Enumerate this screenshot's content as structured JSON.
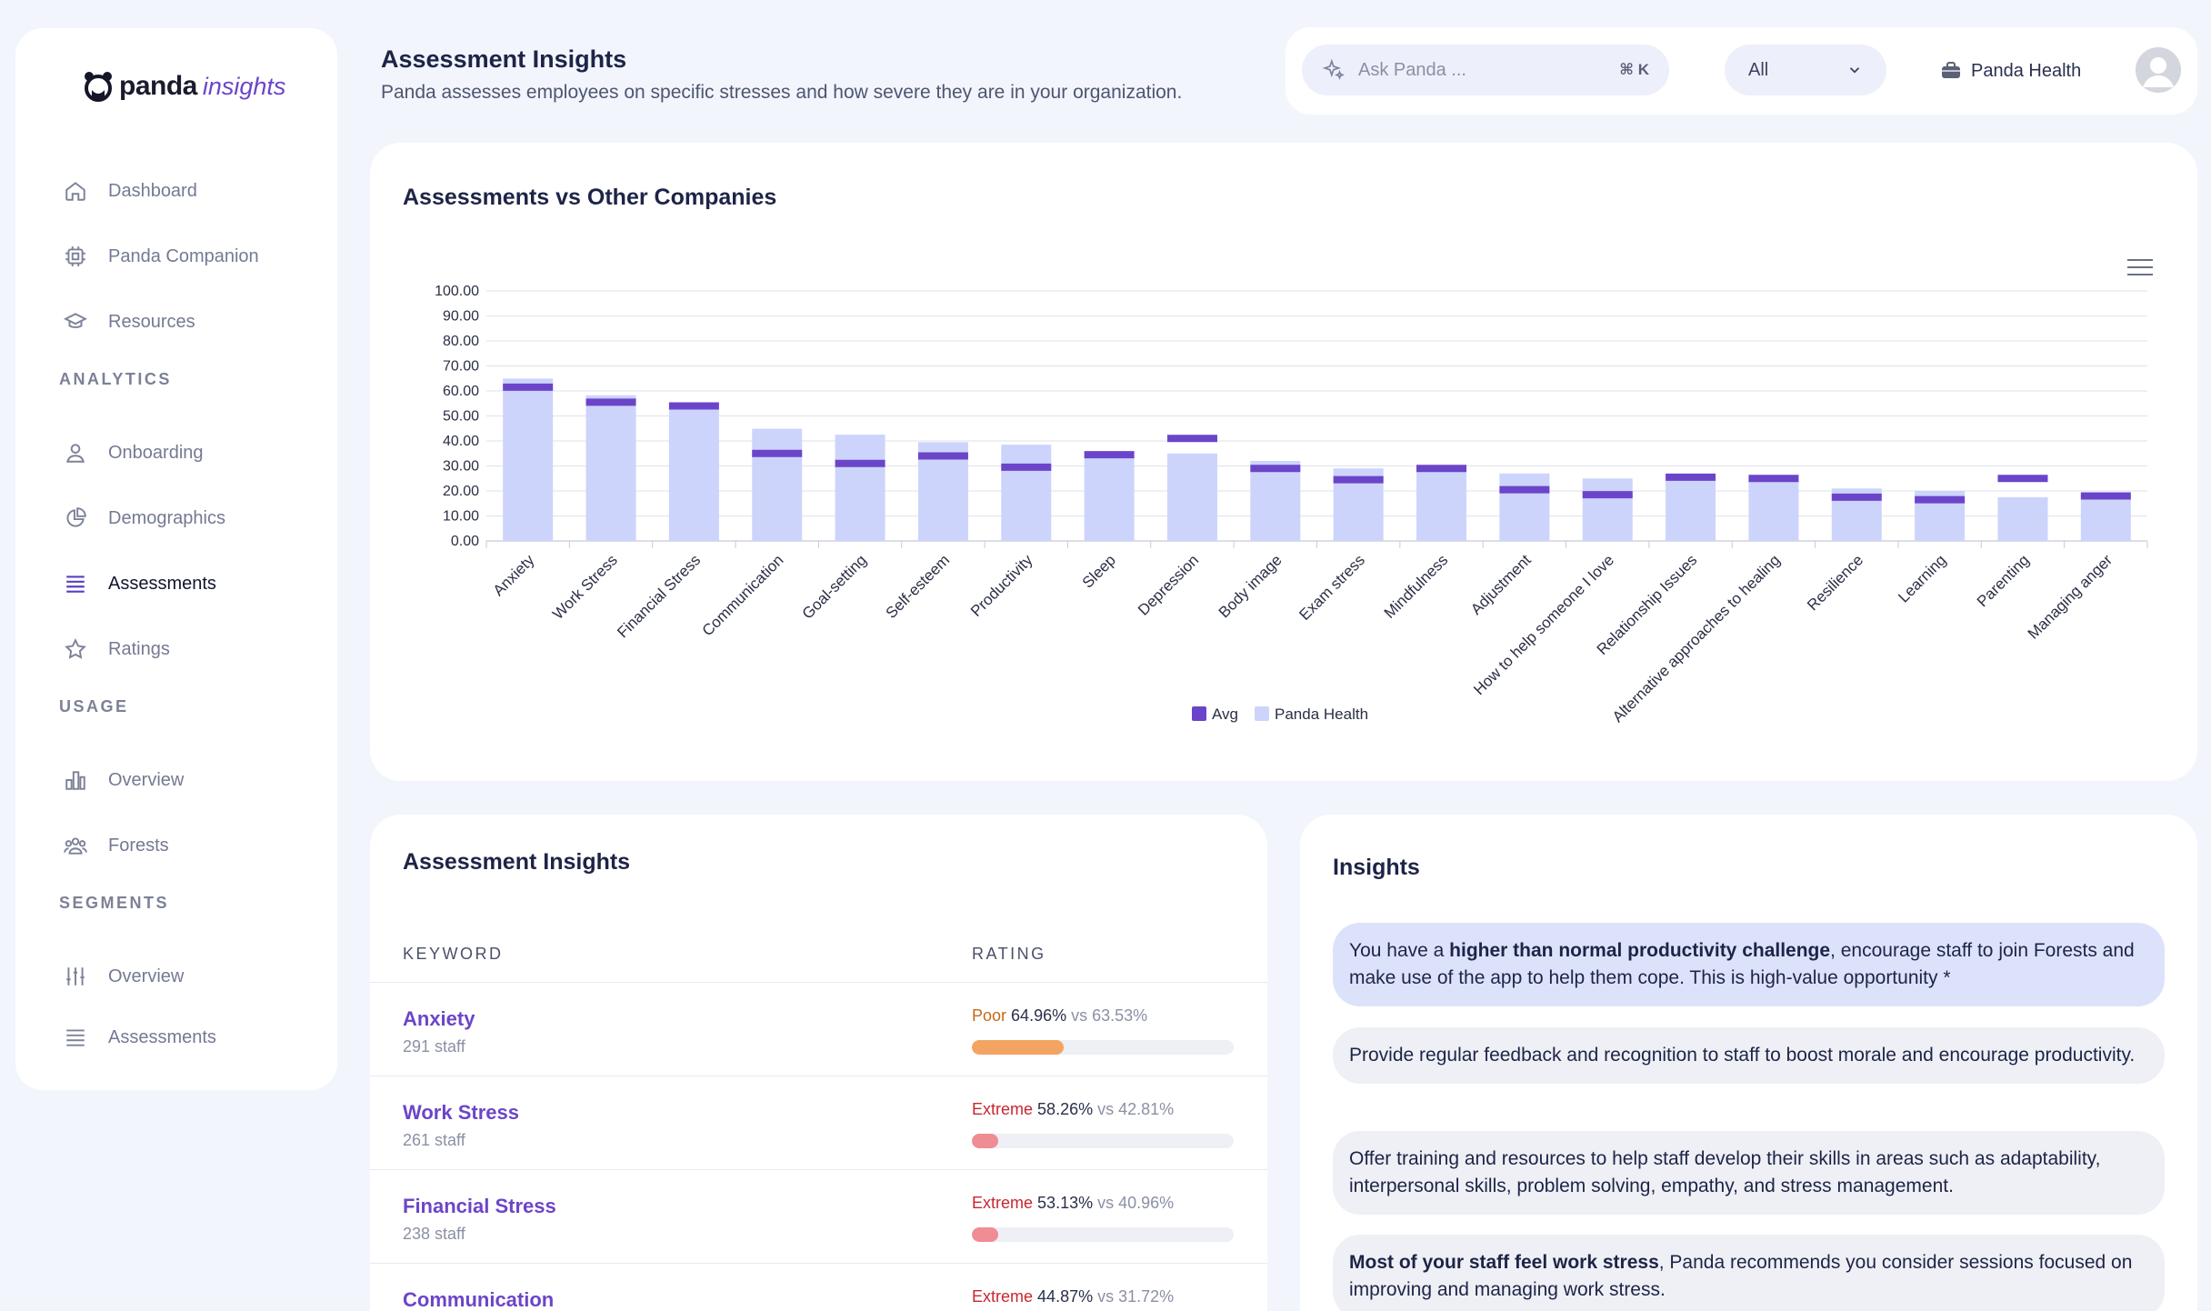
{
  "brand": {
    "name": "panda",
    "suffix": "insights"
  },
  "nav": {
    "main": [
      {
        "label": "Dashboard",
        "icon": "home-icon"
      },
      {
        "label": "Panda Companion",
        "icon": "chip-icon"
      },
      {
        "label": "Resources",
        "icon": "graduation-cap-icon"
      }
    ],
    "analytics_label": "ANALYTICS",
    "analytics": [
      {
        "label": "Onboarding",
        "icon": "user-icon"
      },
      {
        "label": "Demographics",
        "icon": "pie-chart-icon"
      },
      {
        "label": "Assessments",
        "icon": "stack-icon",
        "active": true
      },
      {
        "label": "Ratings",
        "icon": "star-icon"
      }
    ],
    "usage_label": "USAGE",
    "usage": [
      {
        "label": "Overview",
        "icon": "bar-chart-icon"
      },
      {
        "label": "Forests",
        "icon": "users-icon"
      }
    ],
    "segments_label": "SEGMENTS",
    "segments": [
      {
        "label": "Overview",
        "icon": "sliders-icon"
      },
      {
        "label": "Assessments",
        "icon": "stack-icon"
      }
    ]
  },
  "header": {
    "title": "Assessment Insights",
    "subtitle": "Panda assesses employees on specific stresses and how severe they are in your organization."
  },
  "topbar": {
    "search_placeholder": "Ask Panda ...",
    "search_shortcut": "⌘ K",
    "filter_value": "All",
    "org_name": "Panda Health"
  },
  "chart_title": "Assessments vs Other Companies",
  "chart_data": {
    "type": "bar",
    "title": "Assessments vs Other Companies",
    "ylim": [
      0,
      100
    ],
    "yticks": [
      "0.00",
      "10.00",
      "20.00",
      "30.00",
      "40.00",
      "50.00",
      "60.00",
      "70.00",
      "80.00",
      "90.00",
      "100.00"
    ],
    "categories": [
      "Anxiety",
      "Work Stress",
      "Financial Stress",
      "Communication",
      "Goal-setting",
      "Self-esteem",
      "Productivity",
      "Sleep",
      "Depression",
      "Body image",
      "Exam stress",
      "Mindfulness",
      "Adjustment",
      "How to help someone I love",
      "Relationship Issues",
      "Alternative approaches to healing",
      "Resilience",
      "Learning",
      "Parenting",
      "Managing anger"
    ],
    "series": [
      {
        "name": "Panda Health",
        "color": "#cdd4fb",
        "values": [
          64.96,
          58.26,
          53.13,
          44.87,
          42.5,
          39.5,
          38.5,
          33.5,
          35,
          32,
          29,
          28.5,
          27,
          25,
          26,
          25,
          21,
          20,
          17.5,
          18.5
        ]
      },
      {
        "name": "Avg",
        "color": "#6b45c9",
        "values": [
          61.5,
          55.5,
          54,
          35,
          31,
          34,
          29.5,
          34.5,
          41,
          29,
          24.5,
          29,
          20.5,
          18.5,
          25.5,
          25,
          17.5,
          16.5,
          25,
          18
        ]
      }
    ],
    "legend": "bottom-center"
  },
  "table": {
    "title": "Assessment Insights",
    "col_keyword": "KEYWORD",
    "col_rating": "RATING",
    "rows": [
      {
        "keyword": "Anxiety",
        "staff": "291 staff",
        "severity": "Poor",
        "severity_color": "#c46a17",
        "pct": "64.96%",
        "vs": "vs 63.53%",
        "fill": 0.35,
        "bar_color": "#f4a462"
      },
      {
        "keyword": "Work Stress",
        "staff": "261 staff",
        "severity": "Extreme",
        "severity_color": "#c8262f",
        "pct": "58.26%",
        "vs": "vs 42.81%",
        "fill": 0.1,
        "bar_color": "#f08c93"
      },
      {
        "keyword": "Financial Stress",
        "staff": "238 staff",
        "severity": "Extreme",
        "severity_color": "#c8262f",
        "pct": "53.13%",
        "vs": "vs 40.96%",
        "fill": 0.1,
        "bar_color": "#f08c93"
      },
      {
        "keyword": "Communication",
        "staff": "",
        "severity": "Extreme",
        "severity_color": "#c8262f",
        "pct": "44.87%",
        "vs": "vs 31.72%",
        "fill": 0.1,
        "bar_color": "#f08c93"
      }
    ]
  },
  "insights": {
    "title": "Insights",
    "items": [
      {
        "bold_pre": "",
        "text_pre": "You have a ",
        "bold": "higher than normal productivity challenge",
        "text_post": ", encourage staff to join Forests and make use of the app to help them cope. This is high-value opportunity *"
      },
      {
        "text_pre": "Provide regular feedback and recognition to staff to boost morale and encourage productivity."
      },
      {
        "text_pre": "Offer training and resources to help staff develop their skills in areas such as adaptability, interpersonal skills, problem solving, empathy, and stress management."
      },
      {
        "bold_pre": "Most of your staff feel work stress",
        "text_post": ", Panda recommends you consider sessions focused on improving and managing work stress."
      }
    ]
  }
}
